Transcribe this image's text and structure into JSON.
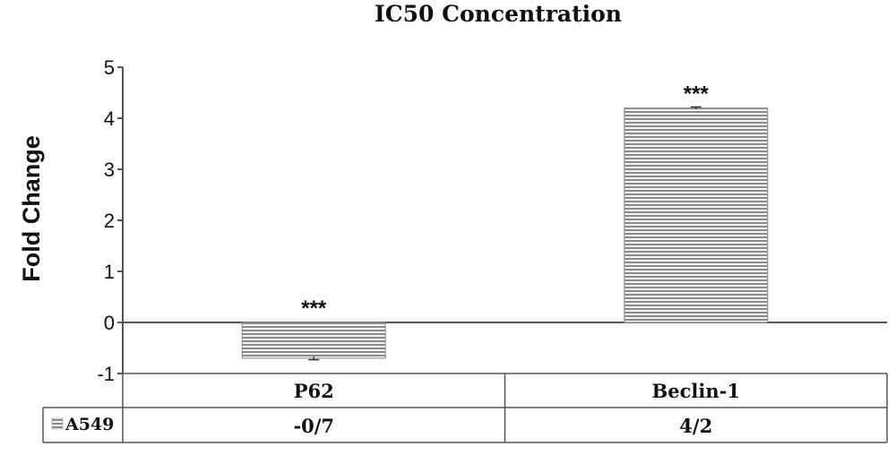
{
  "chart_data": {
    "type": "bar",
    "title": "IC50 Concentration",
    "ylabel": "Fold Change",
    "xlabel": "",
    "ylim": [
      -1,
      5
    ],
    "yticks": [
      "-1",
      "0",
      "1",
      "2",
      "3",
      "4",
      "5"
    ],
    "categories": [
      "P62",
      "Beclin-1"
    ],
    "series": [
      {
        "name": "A549",
        "values": [
          -0.7,
          4.2
        ],
        "table_labels": [
          "-0/7",
          "4/2"
        ],
        "significance": [
          "***",
          "***"
        ],
        "error": [
          0.03,
          0.02
        ]
      }
    ],
    "grid": false,
    "legend": "data-table",
    "colors": {
      "bar": "#8a8a8a",
      "stripe": "#f2f2f2",
      "axis": "#555555"
    }
  }
}
